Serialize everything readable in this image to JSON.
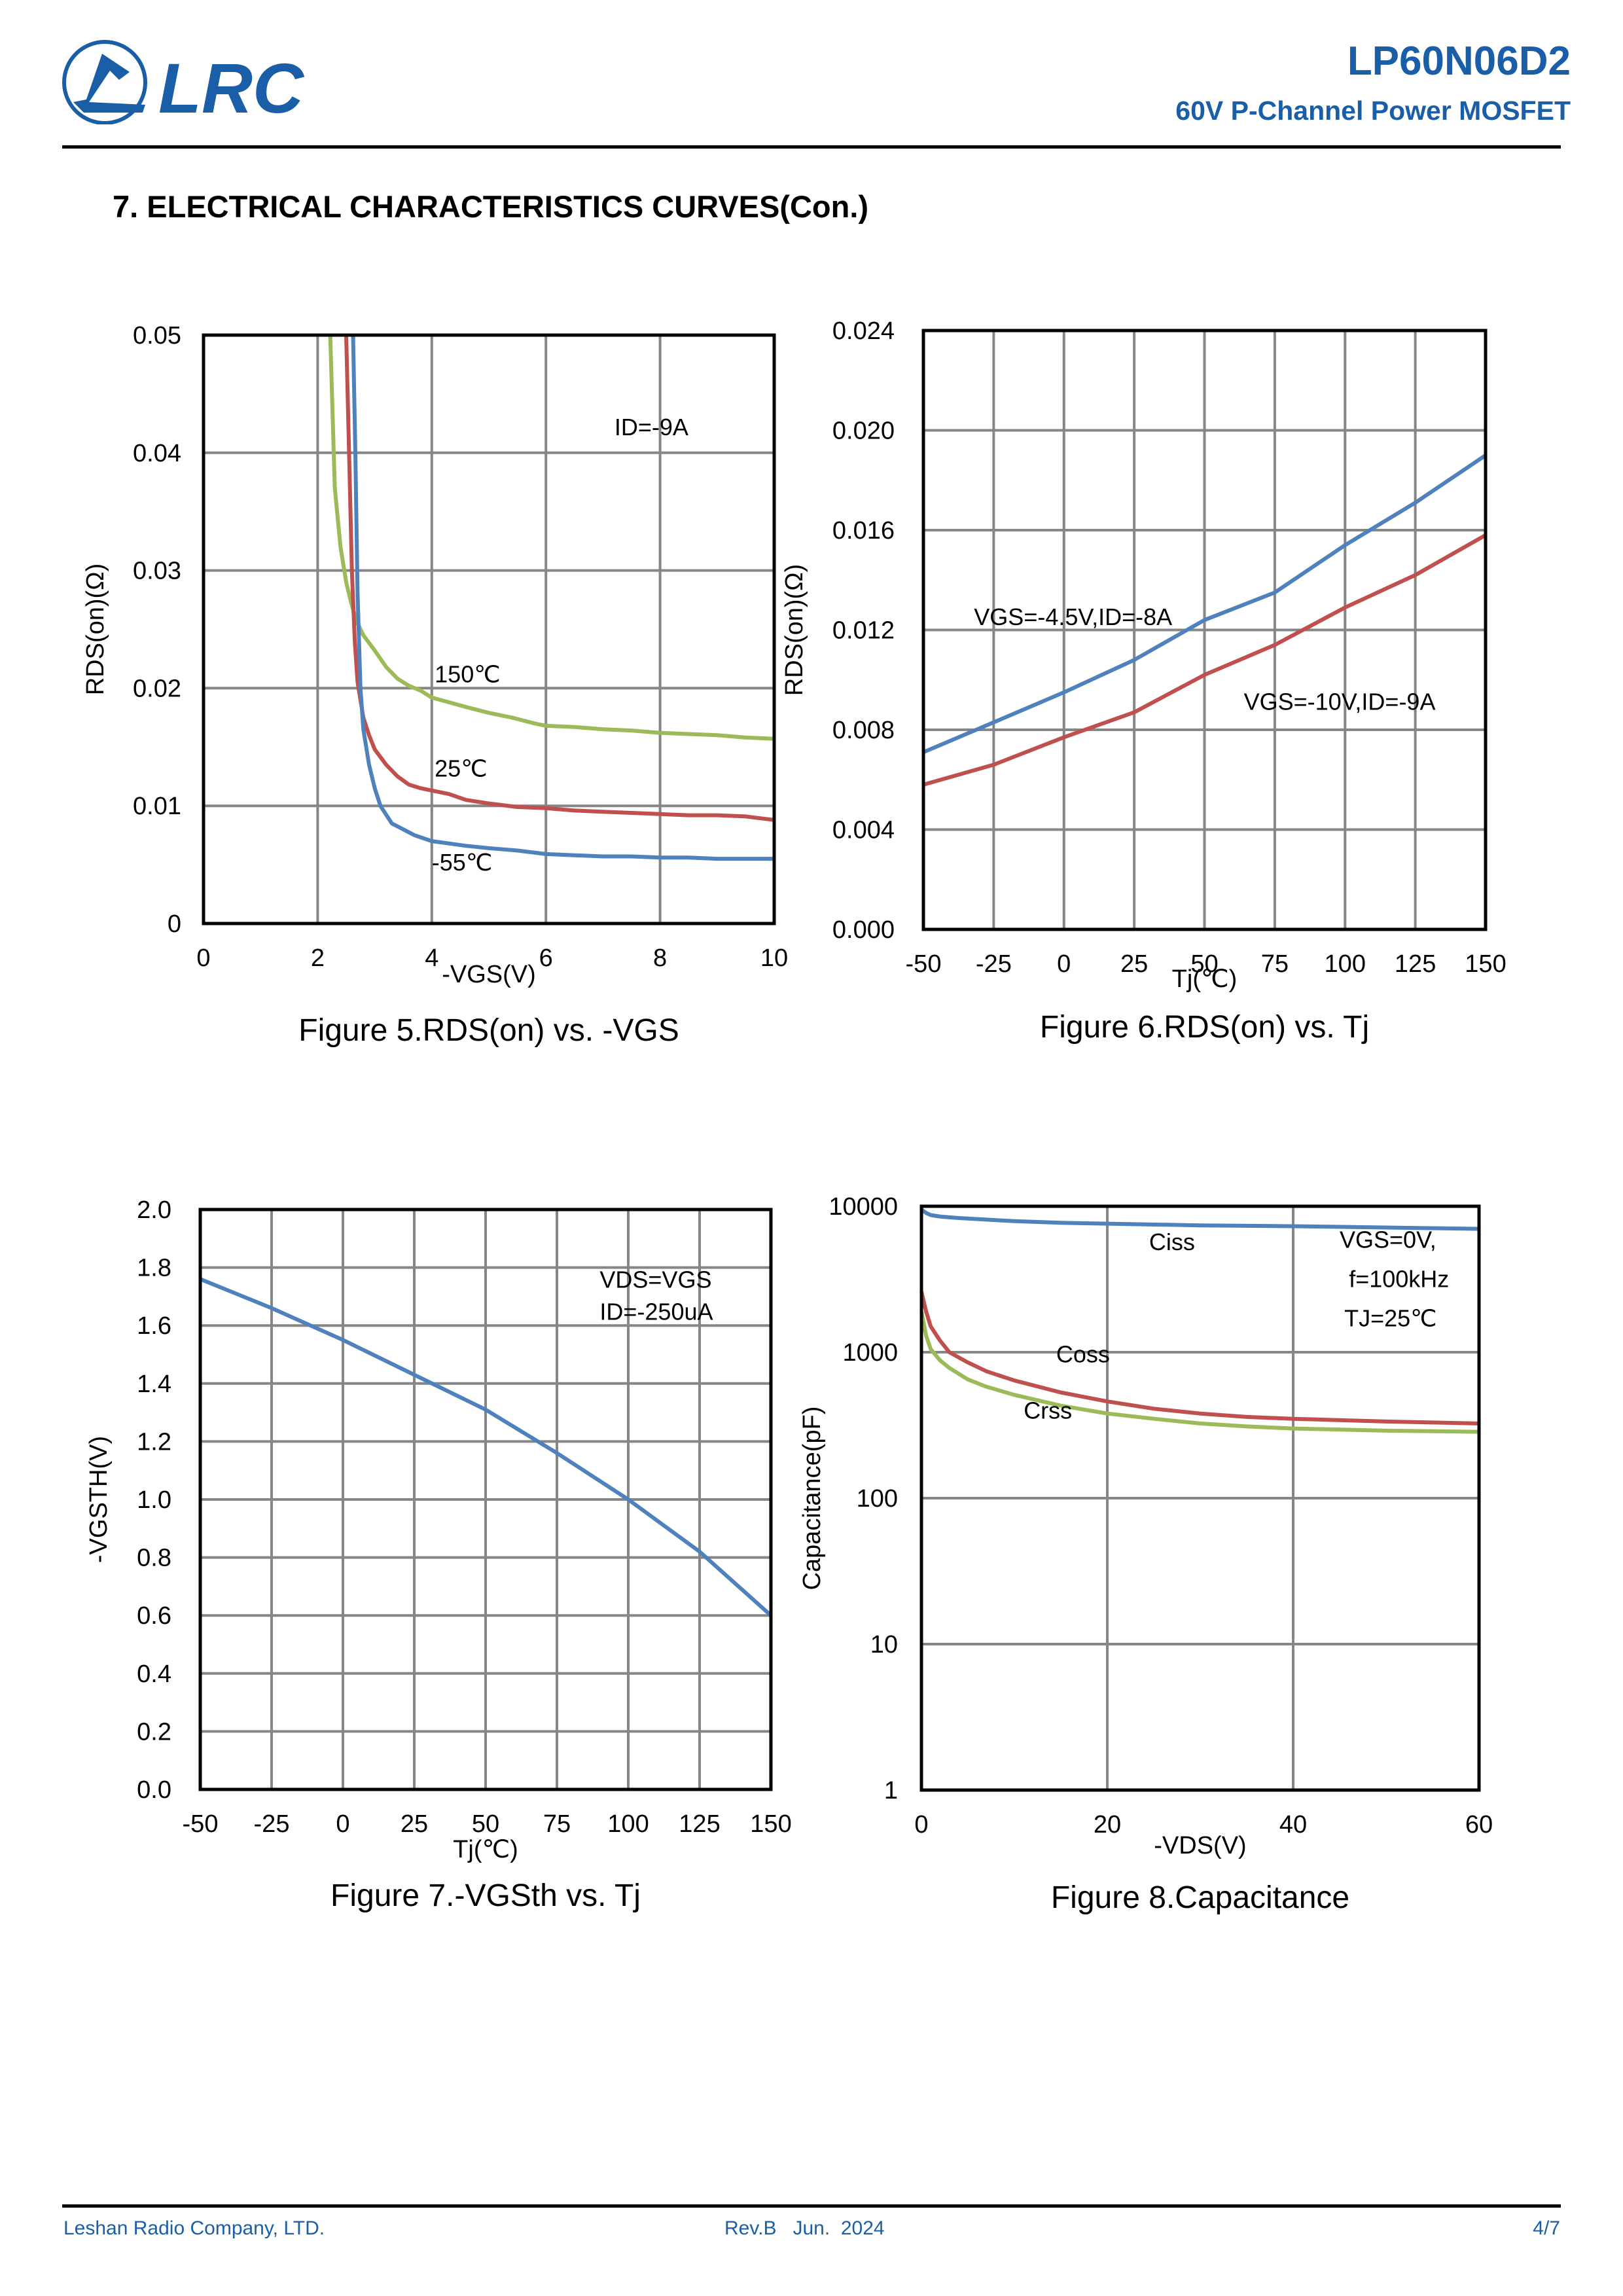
{
  "header": {
    "logo_text": "LRC",
    "part_number": "LP60N06D2",
    "description": "60V P-Channel Power MOSFET",
    "brand_color": "#1a5ea8"
  },
  "section_title": "7. ELECTRICAL CHARACTERISTICS CURVES(Con.)",
  "footer": {
    "company": "Leshan Radio Company, LTD.",
    "revision": "Rev.B   Jun.  2024",
    "page": "4/7"
  },
  "chart_data": [
    {
      "id": "fig5",
      "type": "line",
      "title": "Figure 5.RDS(on) vs. -VGS",
      "xlabel": "-VGS(V)",
      "ylabel": "RDS(on)(Ω)",
      "xlim": [
        0,
        10
      ],
      "ylim": [
        0,
        0.05
      ],
      "yscale": "linear",
      "xticks": [
        0,
        2,
        4,
        6,
        8,
        10
      ],
      "xtick_labels": [
        "0",
        "2",
        "4",
        "6",
        "8",
        "10"
      ],
      "yticks": [
        0,
        0.01,
        0.02,
        0.03,
        0.04,
        0.05
      ],
      "ytick_labels": [
        "0",
        "0.01",
        "0.02",
        "0.03",
        "0.04",
        "0.05"
      ],
      "grid": true,
      "annotations": [
        {
          "text": "ID=-9A",
          "x": 7.2,
          "y": 0.0415
        },
        {
          "text": "150℃",
          "x": 4.05,
          "y": 0.0205
        },
        {
          "text": "25℃",
          "x": 4.05,
          "y": 0.0125
        },
        {
          "text": "-55℃",
          "x": 4.0,
          "y": 0.0045
        }
      ],
      "series": [
        {
          "name": "150℃",
          "color": "#9bbb59",
          "x": [
            2.22,
            2.3,
            2.4,
            2.5,
            2.6,
            2.7,
            2.8,
            3.0,
            3.2,
            3.4,
            3.6,
            3.8,
            4.0,
            4.3,
            4.6,
            5.0,
            5.4,
            5.8,
            6.0,
            6.5,
            7.0,
            7.5,
            8.0,
            8.5,
            9.0,
            9.5,
            10.0
          ],
          "y": [
            0.05,
            0.037,
            0.032,
            0.029,
            0.027,
            0.0255,
            0.0245,
            0.0232,
            0.0218,
            0.0208,
            0.0202,
            0.0198,
            0.0192,
            0.0188,
            0.0184,
            0.0179,
            0.0175,
            0.017,
            0.0168,
            0.0167,
            0.0165,
            0.0164,
            0.0162,
            0.0161,
            0.016,
            0.0158,
            0.0157
          ]
        },
        {
          "name": "25℃",
          "color": "#c0504d",
          "x": [
            2.5,
            2.55,
            2.6,
            2.65,
            2.7,
            2.8,
            2.9,
            3.0,
            3.2,
            3.4,
            3.6,
            3.8,
            4.0,
            4.3,
            4.6,
            5.0,
            5.5,
            6.0,
            6.5,
            7.0,
            7.5,
            8.0,
            8.5,
            9.0,
            9.5,
            10.0
          ],
          "y": [
            0.05,
            0.04,
            0.03,
            0.024,
            0.0205,
            0.0175,
            0.016,
            0.0148,
            0.0135,
            0.0125,
            0.0118,
            0.0115,
            0.0113,
            0.011,
            0.0105,
            0.0102,
            0.0099,
            0.0098,
            0.0096,
            0.0095,
            0.0094,
            0.0093,
            0.0092,
            0.0092,
            0.0091,
            0.0088
          ]
        },
        {
          "name": "-55℃",
          "color": "#4f81bd",
          "x": [
            2.62,
            2.66,
            2.7,
            2.75,
            2.8,
            2.9,
            3.0,
            3.1,
            3.3,
            3.5,
            3.7,
            4.0,
            4.3,
            4.6,
            5.0,
            5.5,
            6.0,
            6.5,
            7.0,
            7.5,
            8.0,
            8.5,
            9.0,
            9.5,
            10.0
          ],
          "y": [
            0.05,
            0.04,
            0.028,
            0.02,
            0.0165,
            0.0135,
            0.0115,
            0.01,
            0.0085,
            0.008,
            0.0075,
            0.007,
            0.0068,
            0.0066,
            0.0064,
            0.0062,
            0.0059,
            0.0058,
            0.0057,
            0.0057,
            0.0056,
            0.0056,
            0.0055,
            0.0055,
            0.0055
          ]
        }
      ]
    },
    {
      "id": "fig6",
      "type": "line",
      "title": "Figure 6.RDS(on) vs. Tj",
      "xlabel": "Tj(℃)",
      "ylabel": "RDS(on)(Ω)",
      "xlim": [
        -50,
        150
      ],
      "ylim": [
        0,
        0.024
      ],
      "yscale": "linear",
      "xticks": [
        -50,
        -25,
        0,
        25,
        50,
        75,
        100,
        125,
        150
      ],
      "xtick_labels": [
        "-50",
        "-25",
        "0",
        "25",
        "50",
        "75",
        "100",
        "125",
        "150"
      ],
      "yticks": [
        0,
        0.004,
        0.008,
        0.012,
        0.016,
        0.02,
        0.024
      ],
      "ytick_labels": [
        "0.000",
        "0.004",
        "0.008",
        "0.012",
        "0.016",
        "0.020",
        "0.024"
      ],
      "grid": true,
      "annotations": [
        {
          "text": "VGS=-4.5V,ID=-8A",
          "x": -32,
          "y": 0.0122
        },
        {
          "text": "VGS=-10V,ID=-9A",
          "x": 64,
          "y": 0.0088
        }
      ],
      "series": [
        {
          "name": "VGS=-4.5V,ID=-8A",
          "color": "#4f81bd",
          "x": [
            -50,
            -25,
            0,
            25,
            50,
            75,
            100,
            125,
            150
          ],
          "y": [
            0.0071,
            0.0083,
            0.0095,
            0.0108,
            0.0124,
            0.0135,
            0.0154,
            0.0171,
            0.019
          ]
        },
        {
          "name": "VGS=-10V,ID=-9A",
          "color": "#c0504d",
          "x": [
            -50,
            -25,
            0,
            25,
            50,
            75,
            100,
            125,
            150
          ],
          "y": [
            0.0058,
            0.0066,
            0.0077,
            0.0087,
            0.0102,
            0.0114,
            0.0129,
            0.0142,
            0.0158
          ]
        }
      ]
    },
    {
      "id": "fig7",
      "type": "line",
      "title": "Figure 7.-VGSth vs. Tj",
      "xlabel": "Tj(℃)",
      "ylabel": "-VGSTH(V)",
      "xlim": [
        -50,
        150
      ],
      "ylim": [
        0,
        2.0
      ],
      "yscale": "linear",
      "xticks": [
        -50,
        -25,
        0,
        25,
        50,
        75,
        100,
        125,
        150
      ],
      "xtick_labels": [
        "-50",
        "-25",
        "0",
        "25",
        "50",
        "75",
        "100",
        "125",
        "150"
      ],
      "yticks": [
        0,
        0.2,
        0.4,
        0.6,
        0.8,
        1.0,
        1.2,
        1.4,
        1.6,
        1.8,
        2.0
      ],
      "ytick_labels": [
        "0.0",
        "0.2",
        "0.4",
        "0.6",
        "0.8",
        "1.0",
        "1.2",
        "1.4",
        "1.6",
        "1.8",
        "2.0"
      ],
      "grid": true,
      "annotations": [
        {
          "text": "VDS=VGS",
          "x": 90,
          "y": 1.73
        },
        {
          "text": "ID=-250uA",
          "x": 90,
          "y": 1.62
        }
      ],
      "series": [
        {
          "name": "-VGSth",
          "color": "#4f81bd",
          "x": [
            -50,
            -25,
            0,
            25,
            50,
            75,
            100,
            125,
            150
          ],
          "y": [
            1.76,
            1.66,
            1.55,
            1.43,
            1.31,
            1.16,
            1.0,
            0.82,
            0.6
          ]
        }
      ]
    },
    {
      "id": "fig8",
      "type": "line",
      "title": "Figure 8.Capacitance",
      "xlabel": "-VDS(V)",
      "ylabel": "Capacitance(pF)",
      "xlim": [
        0,
        60
      ],
      "ylim": [
        1,
        10000
      ],
      "yscale": "log",
      "xticks": [
        0,
        20,
        40,
        60
      ],
      "xtick_labels": [
        "0",
        "20",
        "40",
        "60"
      ],
      "yticks": [
        1,
        10,
        100,
        1000,
        10000
      ],
      "ytick_labels": [
        "1",
        "10",
        "100",
        "1000",
        "10000"
      ],
      "grid": true,
      "annotations": [
        {
          "text": "Ciss",
          "x": 24.5,
          "y": 5000
        },
        {
          "text": "VGS=0V,",
          "x": 45,
          "y": 5200
        },
        {
          "text": "f=100kHz",
          "x": 46,
          "y": 2800
        },
        {
          "text": "TJ=25℃",
          "x": 45.5,
          "y": 1500
        },
        {
          "text": "Coss",
          "x": 14.5,
          "y": 850
        },
        {
          "text": "Crss",
          "x": 11,
          "y": 350
        }
      ],
      "series": [
        {
          "name": "Ciss",
          "color": "#4f81bd",
          "x": [
            0,
            0.5,
            1,
            2,
            4,
            7,
            10,
            15,
            20,
            30,
            40,
            50,
            60
          ],
          "y": [
            9500,
            9000,
            8700,
            8500,
            8300,
            8100,
            7900,
            7700,
            7600,
            7400,
            7300,
            7150,
            7000
          ]
        },
        {
          "name": "Coss",
          "color": "#c0504d",
          "x": [
            0,
            0.5,
            1,
            2,
            3,
            5,
            7,
            10,
            15,
            20,
            25,
            30,
            35,
            40,
            50,
            60
          ],
          "y": [
            2600,
            1900,
            1500,
            1200,
            1000,
            850,
            740,
            640,
            530,
            460,
            410,
            380,
            360,
            350,
            335,
            325
          ]
        },
        {
          "name": "Crss",
          "color": "#9bbb59",
          "x": [
            0,
            0.5,
            1,
            2,
            3,
            5,
            7,
            10,
            15,
            20,
            25,
            30,
            35,
            40,
            50,
            60
          ],
          "y": [
            1900,
            1300,
            1050,
            880,
            780,
            650,
            580,
            510,
            430,
            380,
            350,
            325,
            310,
            300,
            290,
            285
          ]
        }
      ]
    }
  ]
}
